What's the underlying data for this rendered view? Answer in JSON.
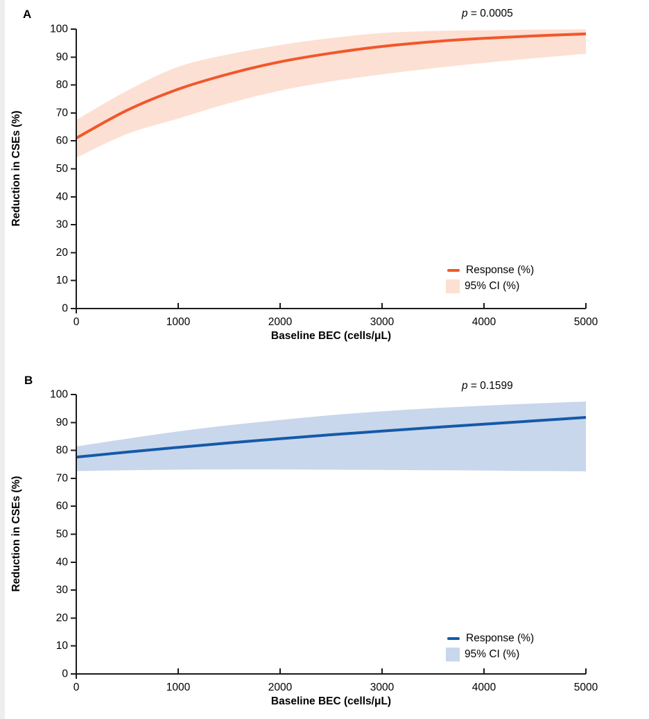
{
  "chart_data": [
    {
      "type": "line",
      "panel": "A",
      "p_label": {
        "symbol": "p",
        "rest": " = 0.0005"
      },
      "xlabel": "Baseline BEC (cells/μL)",
      "ylabel": "Reduction in CSEs (%)",
      "xlim": [
        0,
        5000
      ],
      "ylim": [
        0,
        100
      ],
      "x_ticks": [
        0,
        1000,
        2000,
        3000,
        4000,
        5000
      ],
      "y_ticks": [
        0,
        10,
        20,
        30,
        40,
        50,
        60,
        70,
        80,
        90,
        100
      ],
      "x": [
        0,
        500,
        1000,
        1500,
        2000,
        2500,
        3000,
        3500,
        4000,
        4500,
        5000
      ],
      "series": [
        {
          "name": "Response (%)",
          "values": [
            61,
            71,
            78.5,
            84,
            88.3,
            91.4,
            93.8,
            95.5,
            96.7,
            97.6,
            98.3
          ]
        },
        {
          "name": "95% CI upper (%)",
          "values": [
            67.5,
            78,
            86.5,
            91,
            94.3,
            96.8,
            98.6,
            99.3,
            99.6,
            99.8,
            99.9
          ]
        },
        {
          "name": "95% CI lower (%)",
          "values": [
            54,
            62.5,
            68,
            73.5,
            78,
            81.3,
            83.8,
            86,
            87.9,
            89.6,
            91.2
          ]
        }
      ],
      "legend": [
        {
          "label": "Response (%)",
          "marker": "line"
        },
        {
          "label": "95% CI (%)",
          "marker": "band"
        }
      ],
      "colors": {
        "line": "#F1572B",
        "band": "#FCE0D3"
      }
    },
    {
      "type": "line",
      "panel": "B",
      "p_label": {
        "symbol": "p",
        "rest": " = 0.1599"
      },
      "xlabel": "Baseline BEC (cells/μL)",
      "ylabel": "Reduction in CSEs (%)",
      "xlim": [
        0,
        5000
      ],
      "ylim": [
        0,
        100
      ],
      "x_ticks": [
        0,
        1000,
        2000,
        3000,
        4000,
        5000
      ],
      "y_ticks": [
        0,
        10,
        20,
        30,
        40,
        50,
        60,
        70,
        80,
        90,
        100
      ],
      "x": [
        0,
        500,
        1000,
        1500,
        2000,
        2500,
        3000,
        3500,
        4000,
        4500,
        5000
      ],
      "series": [
        {
          "name": "Response (%)",
          "values": [
            77.6,
            79.4,
            81.1,
            82.7,
            84.2,
            85.6,
            86.9,
            88.2,
            89.4,
            90.6,
            91.8
          ]
        },
        {
          "name": "95% CI upper (%)",
          "values": [
            81.4,
            84.2,
            86.8,
            89,
            90.9,
            92.6,
            94,
            95.1,
            96,
            96.8,
            97.5
          ]
        },
        {
          "name": "95% CI lower (%)",
          "values": [
            72.6,
            72.9,
            73.1,
            73.2,
            73.2,
            73.1,
            73,
            72.9,
            72.8,
            72.6,
            72.5
          ]
        }
      ],
      "legend": [
        {
          "label": "Response (%)",
          "marker": "line"
        },
        {
          "label": "95% CI (%)",
          "marker": "band"
        }
      ],
      "colors": {
        "line": "#1559A9",
        "band": "#C8D7EB"
      }
    }
  ],
  "axis_color": "#1a1a1a"
}
